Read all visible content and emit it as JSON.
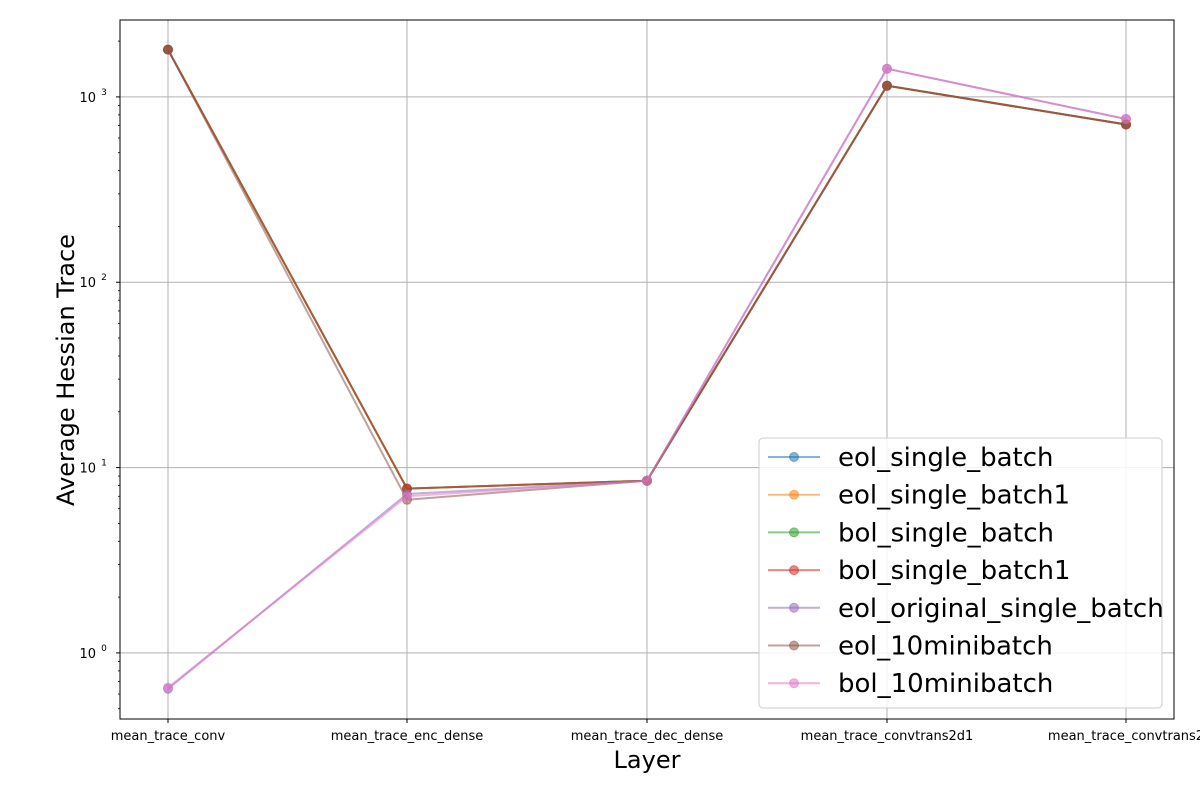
{
  "chart_data": {
    "type": "line",
    "title": "",
    "xlabel": "Layer",
    "ylabel": "Average Hessian Trace",
    "y_scale": "log",
    "ylim": [
      0.44,
      2600
    ],
    "y_ticks": [
      {
        "value": 1,
        "label": "10",
        "exp": "0"
      },
      {
        "value": 10,
        "label": "10",
        "exp": "1"
      },
      {
        "value": 100,
        "label": "10",
        "exp": "2"
      },
      {
        "value": 1000,
        "label": "10",
        "exp": "3"
      }
    ],
    "categories": [
      "mean_trace_conv",
      "mean_trace_enc_dense",
      "mean_trace_dec_dense",
      "mean_trace_convtrans2d1",
      "mean_trace_convtrans2"
    ],
    "grid": true,
    "legend_position": "lower-right",
    "series": [
      {
        "name": "eol_single_batch",
        "color": "#1f77b4",
        "values": [
          1800,
          7.7,
          8.5,
          1150,
          710
        ]
      },
      {
        "name": "eol_single_batch1",
        "color": "#ff7f0e",
        "values": [
          1800,
          7.7,
          8.5,
          1150,
          710
        ]
      },
      {
        "name": "bol_single_batch",
        "color": "#2ca02c",
        "values": [
          1800,
          7.7,
          8.5,
          1150,
          710
        ]
      },
      {
        "name": "bol_single_batch1",
        "color": "#d62728",
        "values": [
          1800,
          7.7,
          8.5,
          1150,
          710
        ]
      },
      {
        "name": "eol_original_single_batch",
        "color": "#9467bd",
        "values": [
          0.64,
          7.2,
          8.5,
          1420,
          760
        ]
      },
      {
        "name": "eol_10minibatch",
        "color": "#8c564b",
        "values": [
          1800,
          6.7,
          8.5,
          1150,
          710
        ]
      },
      {
        "name": "bol_10minibatch",
        "color": "#e377c2",
        "values": [
          0.65,
          7.0,
          8.5,
          1420,
          760
        ]
      }
    ]
  }
}
